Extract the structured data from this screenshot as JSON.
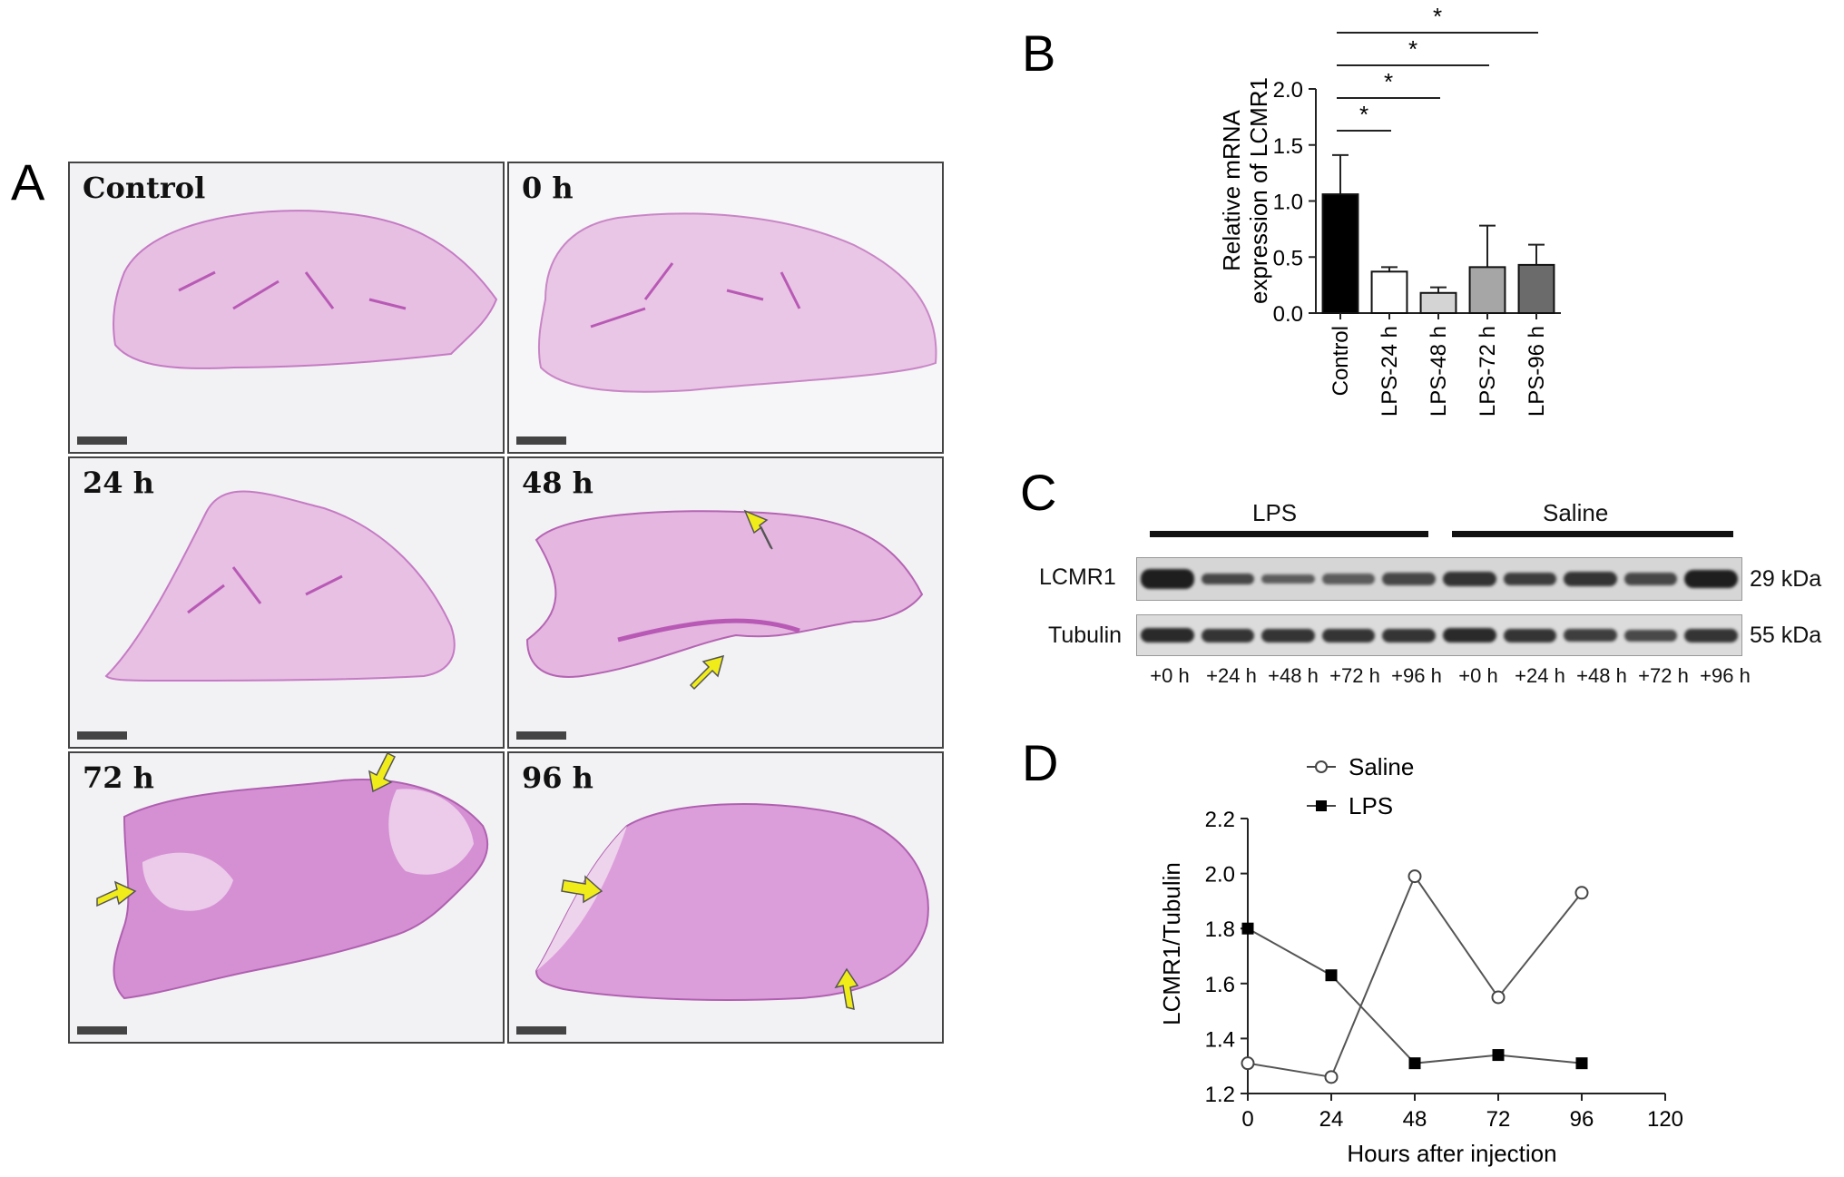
{
  "panel_letters": {
    "a": "A",
    "b": "B",
    "c": "C",
    "d": "D"
  },
  "histology": {
    "tiles": [
      {
        "label": "Control"
      },
      {
        "label": "0 h"
      },
      {
        "label": "24 h"
      },
      {
        "label": "48 h"
      },
      {
        "label": "72 h"
      },
      {
        "label": "96 h"
      }
    ]
  },
  "chart_data": [
    {
      "type": "bar",
      "panel": "B",
      "ylabel_line1": "Relative mRNA",
      "ylabel_line2": "expression of LCMR1",
      "categories": [
        "Control",
        "LPS-24 h",
        "LPS-48 h",
        "LPS-72 h",
        "LPS-96 h"
      ],
      "values": [
        1.06,
        0.37,
        0.18,
        0.41,
        0.43
      ],
      "errors": [
        0.35,
        0.04,
        0.05,
        0.37,
        0.18
      ],
      "bar_colors": [
        "#000000",
        "#ffffff",
        "#d4d4d4",
        "#a6a6a6",
        "#6b6b6b"
      ],
      "ylim": [
        0,
        2.0
      ],
      "yticks": [
        "0.0",
        "0.5",
        "1.0",
        "1.5",
        "2.0"
      ],
      "significance": [
        {
          "from": "Control",
          "to": "LPS-24 h",
          "label": "*"
        },
        {
          "from": "Control",
          "to": "LPS-48 h",
          "label": "*"
        },
        {
          "from": "Control",
          "to": "LPS-72 h",
          "label": "*"
        },
        {
          "from": "Control",
          "to": "LPS-96 h",
          "label": "*"
        }
      ]
    },
    {
      "type": "blot",
      "panel": "C",
      "groups": [
        "LPS",
        "Saline"
      ],
      "rows": [
        {
          "name": "LCMR1",
          "size": "29 kDa"
        },
        {
          "name": "Tubulin",
          "size": "55 kDa"
        }
      ],
      "lanes": [
        "+0 h",
        "+24 h",
        "+48 h",
        "+72 h",
        "+96 h",
        "+0 h",
        "+24 h",
        "+48 h",
        "+72 h",
        "+96 h"
      ]
    },
    {
      "type": "line",
      "panel": "D",
      "xlabel": "Hours after injection",
      "ylabel": "LCMR1/Tubulin",
      "x": [
        0,
        24,
        48,
        72,
        96
      ],
      "xlim": [
        0,
        120
      ],
      "xticks": [
        "0",
        "24",
        "48",
        "72",
        "96",
        "120"
      ],
      "ylim": [
        1.2,
        2.2
      ],
      "yticks": [
        "1.2",
        "1.4",
        "1.6",
        "1.8",
        "2.0",
        "2.2"
      ],
      "legend_position": "top-left",
      "series": [
        {
          "name": "Saline",
          "marker": "open-circle",
          "values": [
            1.31,
            1.26,
            1.99,
            1.55,
            1.93
          ]
        },
        {
          "name": "LPS",
          "marker": "filled-square",
          "values": [
            1.8,
            1.63,
            1.31,
            1.34,
            1.31
          ]
        }
      ]
    }
  ]
}
